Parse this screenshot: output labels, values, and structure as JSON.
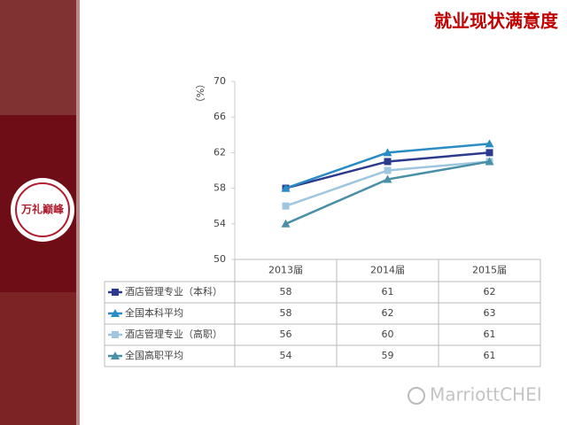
{
  "chart_data": {
    "type": "line",
    "title": "就业现状满意度",
    "y_label": "（%）",
    "categories": [
      "2013届",
      "2014届",
      "2015届"
    ],
    "series": [
      {
        "name": "酒店管理专业（本科）",
        "color": "#2b3a8c",
        "marker": "square",
        "values": [
          58,
          61,
          62
        ]
      },
      {
        "name": "全国本科平均",
        "color": "#2a8cc4",
        "marker": "triangle",
        "values": [
          58,
          62,
          63
        ]
      },
      {
        "name": "酒店管理专业（高职）",
        "color": "#9fc6df",
        "marker": "square",
        "values": [
          56,
          60,
          61
        ]
      },
      {
        "name": "全国高职平均",
        "color": "#4a8fa8",
        "marker": "triangle",
        "values": [
          54,
          59,
          61
        ]
      }
    ],
    "ylim": [
      50,
      70
    ],
    "yticks": [
      50,
      54,
      58,
      62,
      66,
      70
    ],
    "grid": false
  },
  "logo": "万礼巅峰",
  "watermark": "MarriottCHEI"
}
